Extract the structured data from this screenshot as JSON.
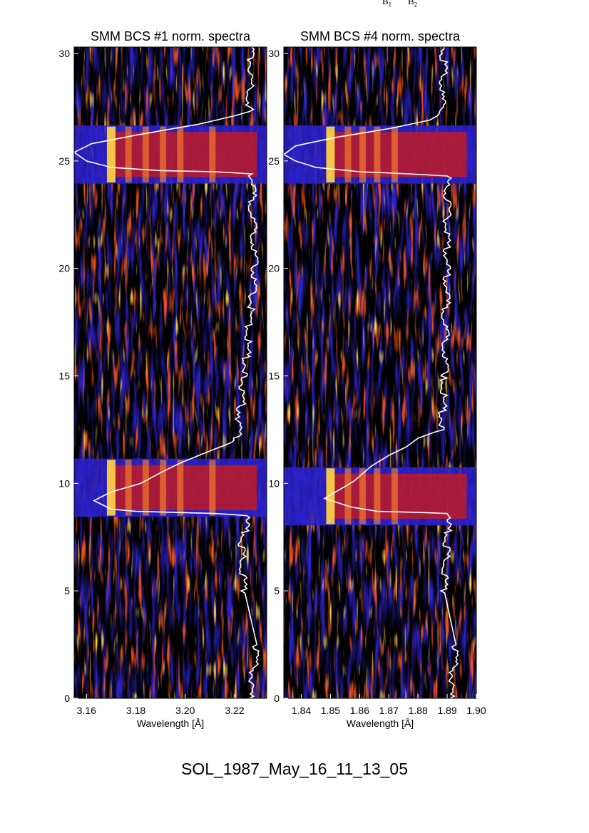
{
  "header_labels": [
    {
      "letter": "B",
      "sub": "1"
    },
    {
      "letter": "B",
      "sub": "2"
    }
  ],
  "footer": {
    "caption": "SOL_1987_May_16_11_13_05"
  },
  "colors": {
    "background": "#000000",
    "blue": "#2a21c8",
    "red": "#d11a10",
    "orange": "#ff8a2a",
    "yellow": "#ffd84a",
    "trace": "#ffffff"
  },
  "chart_data": [
    {
      "type": "heatmap",
      "title": "SMM BCS #1 norm. spectra",
      "xlabel": "Wavelength [Å]",
      "ylabel": "",
      "xlim": [
        3.155,
        3.233
      ],
      "ylim": [
        0,
        30.3
      ],
      "xticks": [
        "3.16",
        "3.18",
        "3.20",
        "3.22"
      ],
      "xtick_values": [
        3.16,
        3.18,
        3.2,
        3.22
      ],
      "yticks": [
        "0",
        "5",
        "10",
        "15",
        "20",
        "25",
        "30"
      ],
      "yband_centers": [
        9.8,
        25.3
      ],
      "bright_lines": [
        3.17,
        3.177,
        3.184,
        3.191,
        3.198,
        3.211
      ],
      "overlay_trace": {
        "baseline_x": 3.226,
        "points": [
          [
            3.226,
            0
          ],
          [
            3.229,
            2.5
          ],
          [
            3.224,
            5
          ],
          [
            3.223,
            7
          ],
          [
            3.225,
            8.5
          ],
          [
            3.212,
            8.6
          ],
          [
            3.18,
            8.7
          ],
          [
            3.17,
            8.8
          ],
          [
            3.163,
            9.2
          ],
          [
            3.17,
            9.6
          ],
          [
            3.182,
            10.0
          ],
          [
            3.19,
            10.5
          ],
          [
            3.199,
            11.0
          ],
          [
            3.212,
            11.6
          ],
          [
            3.221,
            12.0
          ],
          [
            3.224,
            15
          ],
          [
            3.228,
            20
          ],
          [
            3.227,
            24.4
          ],
          [
            3.212,
            24.5
          ],
          [
            3.19,
            24.55
          ],
          [
            3.17,
            24.7
          ],
          [
            3.16,
            25.0
          ],
          [
            3.155,
            25.4
          ],
          [
            3.162,
            25.8
          ],
          [
            3.18,
            26.2
          ],
          [
            3.205,
            26.7
          ],
          [
            3.22,
            27.1
          ],
          [
            3.226,
            27.3
          ],
          [
            3.227,
            30.3
          ]
        ]
      }
    },
    {
      "type": "heatmap",
      "title": "SMM BCS #4 norm. spectra",
      "xlabel": "Wavelength [Å]",
      "ylabel": "",
      "xlim": [
        1.834,
        1.9
      ],
      "ylim": [
        0,
        30.3
      ],
      "xticks": [
        "1.84",
        "1.85",
        "1.86",
        "1.87",
        "1.88",
        "1.89",
        "1.90"
      ],
      "xtick_values": [
        1.84,
        1.85,
        1.86,
        1.87,
        1.88,
        1.89,
        1.9
      ],
      "yticks": [
        "0",
        "5",
        "10",
        "15",
        "20",
        "25",
        "30"
      ],
      "yband_centers": [
        9.4,
        25.3
      ],
      "bright_lines": [
        1.85,
        1.856,
        1.861,
        1.866,
        1.872
      ],
      "overlay_trace": {
        "baseline_x": 1.891,
        "points": [
          [
            1.891,
            0
          ],
          [
            1.893,
            2.5
          ],
          [
            1.889,
            5
          ],
          [
            1.89,
            7
          ],
          [
            1.89,
            8.6
          ],
          [
            1.88,
            8.65
          ],
          [
            1.866,
            8.7
          ],
          [
            1.857,
            8.9
          ],
          [
            1.848,
            9.3
          ],
          [
            1.853,
            9.7
          ],
          [
            1.858,
            10.1
          ],
          [
            1.864,
            10.8
          ],
          [
            1.87,
            11.3
          ],
          [
            1.876,
            11.7
          ],
          [
            1.88,
            12.1
          ],
          [
            1.888,
            12.5
          ],
          [
            1.889,
            15
          ],
          [
            1.89,
            20
          ],
          [
            1.89,
            24.3
          ],
          [
            1.877,
            24.4
          ],
          [
            1.86,
            24.5
          ],
          [
            1.845,
            24.7
          ],
          [
            1.838,
            25.0
          ],
          [
            1.834,
            25.3
          ],
          [
            1.838,
            25.7
          ],
          [
            1.852,
            26.1
          ],
          [
            1.87,
            26.5
          ],
          [
            1.884,
            26.9
          ],
          [
            1.888,
            27.2
          ],
          [
            1.889,
            30.3
          ]
        ]
      }
    }
  ]
}
